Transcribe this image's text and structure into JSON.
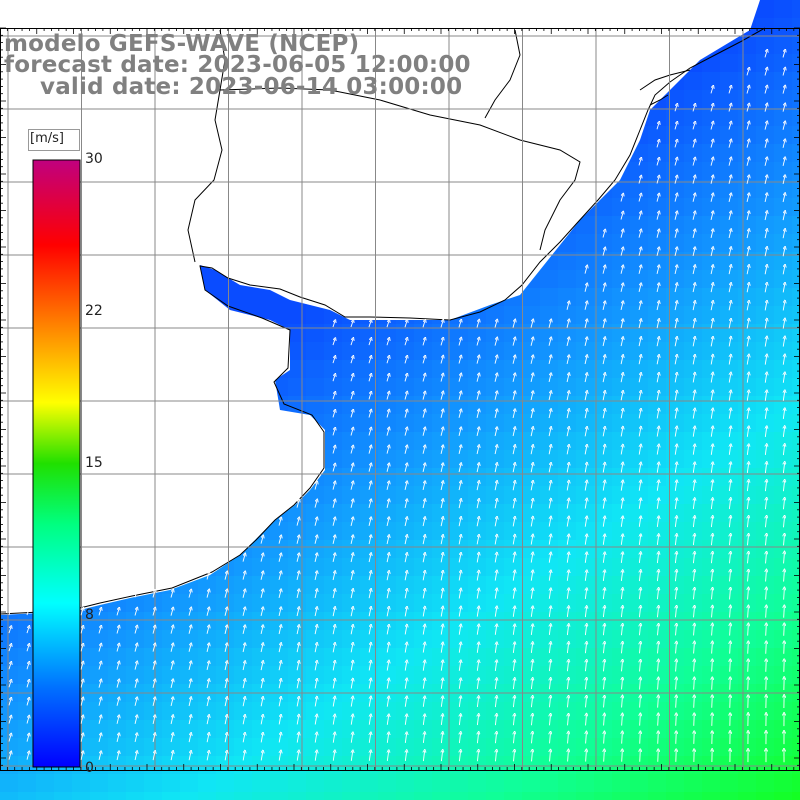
{
  "title": {
    "line1": "modelo GEFS-WAVE (NCEP)",
    "line2": "forecast date: 2023-06-05 12:00:00",
    "line3": "valid date: 2023-06-14 03:00:00"
  },
  "colorbar": {
    "units": "[m/s]",
    "ticks": [
      "30",
      "22",
      "15",
      "8",
      "0"
    ],
    "tick_values": [
      30,
      22,
      15,
      8,
      0
    ],
    "colors": [
      "#0000ff",
      "#0090ff",
      "#00ffff",
      "#00ff00",
      "#ffff00",
      "#ff8000",
      "#ff0000",
      "#c00080"
    ]
  },
  "field": {
    "variable": "wind speed",
    "nearshore_speed": 7,
    "offshore_speed": 12,
    "arrow_direction": "north-northeast",
    "land_color": "#ffffff",
    "grid_color": "#888888"
  }
}
